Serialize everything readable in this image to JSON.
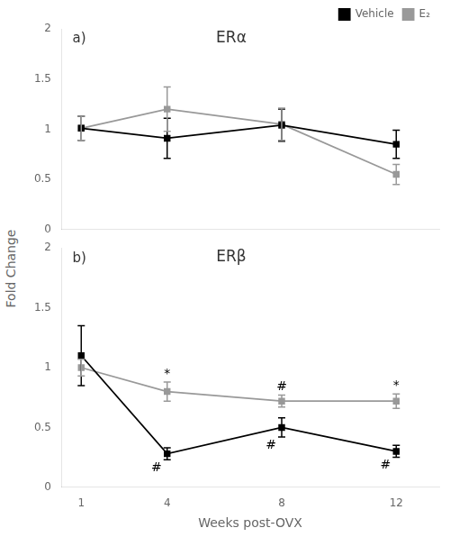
{
  "chart_data": [
    {
      "type": "line",
      "title": "ERα",
      "ylabel": "Fold Change",
      "annotations": [
        {
          "text": "a)"
        }
      ],
      "x": [
        1,
        4,
        8,
        12
      ],
      "series": [
        {
          "name": "Vehicle",
          "color": "#000000",
          "values": [
            1.01,
            0.91,
            1.04,
            0.85
          ],
          "errors": [
            0.12,
            0.2,
            0.16,
            0.14
          ]
        },
        {
          "name": "E₂",
          "color": "#999999",
          "values": [
            1.01,
            1.2,
            1.05,
            0.55
          ],
          "errors": [
            0.12,
            0.22,
            0.16,
            0.1
          ]
        }
      ],
      "marker": "square",
      "xlim": [
        0.3,
        13.5
      ],
      "xticks": [
        1,
        4,
        8,
        12
      ],
      "ylim": [
        0,
        2
      ],
      "yticks": [
        0,
        0.5,
        1,
        1.5,
        2
      ],
      "grid": false,
      "legend": "upper right",
      "tick_labels": "y"
    },
    {
      "type": "line",
      "title": "ERβ",
      "xlabel": "Weeks post-OVX",
      "annotations": [
        {
          "text": "b)"
        },
        {
          "text": "#",
          "x": 4,
          "series": "Vehicle",
          "color": "#000000"
        },
        {
          "text": "#",
          "x": 8,
          "series": "Vehicle",
          "color": "#000000"
        },
        {
          "text": "#",
          "x": 12,
          "series": "Vehicle",
          "color": "#000000"
        },
        {
          "text": "*",
          "x": 4,
          "series": "E₂",
          "color": "#000000"
        },
        {
          "text": "#",
          "x": 8,
          "series": "E₂",
          "color": "#000000"
        },
        {
          "text": "*",
          "x": 12,
          "series": "E₂",
          "color": "#000000"
        }
      ],
      "x": [
        1,
        4,
        8,
        12
      ],
      "series": [
        {
          "name": "Vehicle",
          "color": "#000000",
          "values": [
            1.1,
            0.28,
            0.5,
            0.3
          ],
          "errors": [
            0.25,
            0.05,
            0.08,
            0.05
          ]
        },
        {
          "name": "E₂",
          "color": "#999999",
          "values": [
            1.0,
            0.8,
            0.72,
            0.72
          ],
          "errors": [
            0.07,
            0.08,
            0.05,
            0.06
          ]
        }
      ],
      "marker": "square",
      "xlim": [
        0.3,
        13.5
      ],
      "xticks": [
        1,
        4,
        8,
        12
      ],
      "ylim": [
        0,
        2
      ],
      "yticks": [
        0,
        0.5,
        1,
        1.5,
        2
      ],
      "grid": false
    }
  ]
}
